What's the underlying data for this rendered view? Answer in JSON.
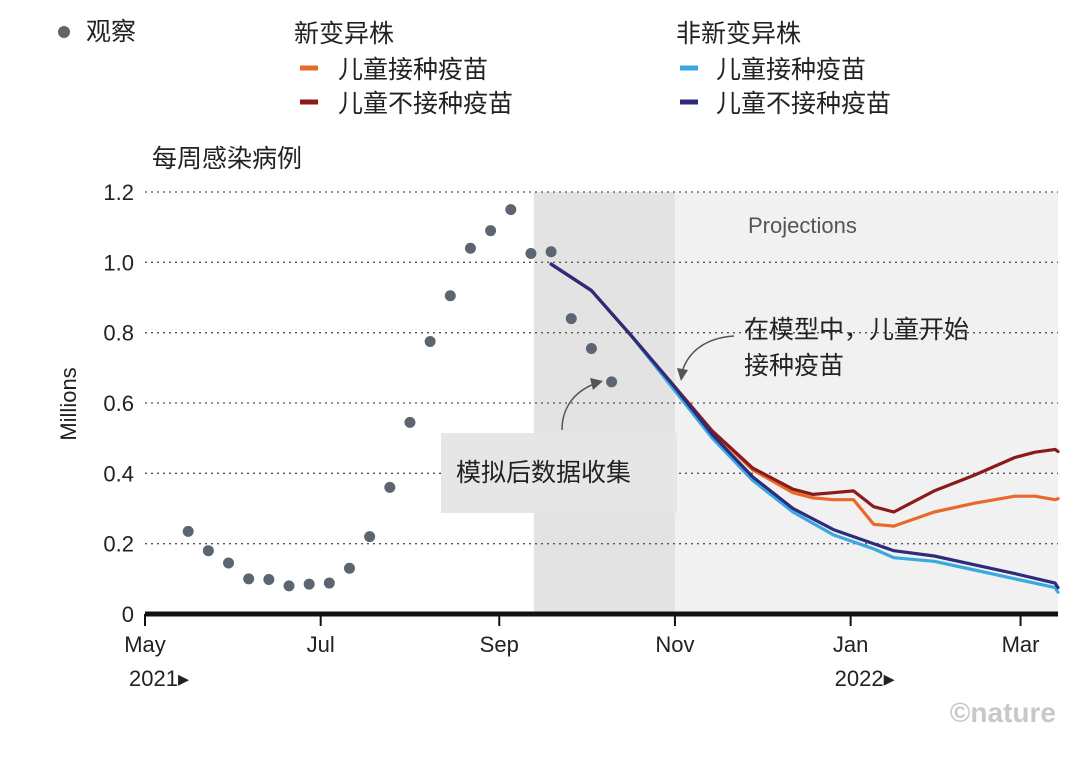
{
  "chart_data": {
    "type": "line",
    "ylabel_top": "每周感染病例",
    "ylabel": "Millions",
    "ylim": [
      0,
      1.2
    ],
    "yticks": [
      "0",
      "0.2",
      "0.4",
      "0.6",
      "0.8",
      "1.0",
      "1.2"
    ],
    "xticks": [
      {
        "date": "2021-05-01",
        "label": "May"
      },
      {
        "date": "2021-07-01",
        "label": "Jul"
      },
      {
        "date": "2021-09-01",
        "label": "Sep"
      },
      {
        "date": "2021-11-01",
        "label": "Nov"
      },
      {
        "date": "2022-01-01",
        "label": "Jan"
      },
      {
        "date": "2022-03-01",
        "label": "Mar"
      }
    ],
    "year_labels": [
      {
        "date": "2021-05-01",
        "label": "2021▸"
      },
      {
        "date": "2022-01-01",
        "label": "2022▸"
      }
    ],
    "xlim": [
      "2021-05-01",
      "2022-03-14"
    ],
    "grid": true,
    "legend": {
      "observed_label": "观察",
      "group1_title": "新变异株",
      "group2_title": "非新变异株",
      "vaccinated_label": "儿童接种疫苗",
      "unvaccinated_label": "儿童不接种疫苗"
    },
    "shaded_regions": [
      {
        "start": "2021-09-13",
        "end": "2021-11-01",
        "color": "#e3e3e3"
      },
      {
        "start": "2021-11-01",
        "end": "2022-03-14",
        "color": "#f1f1f1",
        "label": "Projections"
      }
    ],
    "annotations": [
      {
        "text": "模拟后数据收集"
      },
      {
        "text_line1": "在模型中，儿童开始",
        "text_line2": "接种疫苗"
      }
    ],
    "credit": "©nature",
    "observed": {
      "color": "#5c6570",
      "points": [
        {
          "x": "2021-05-16",
          "y": 0.235
        },
        {
          "x": "2021-05-23",
          "y": 0.18
        },
        {
          "x": "2021-05-30",
          "y": 0.145
        },
        {
          "x": "2021-06-06",
          "y": 0.1
        },
        {
          "x": "2021-06-13",
          "y": 0.098
        },
        {
          "x": "2021-06-20",
          "y": 0.08
        },
        {
          "x": "2021-06-27",
          "y": 0.085
        },
        {
          "x": "2021-07-04",
          "y": 0.088
        },
        {
          "x": "2021-07-11",
          "y": 0.13
        },
        {
          "x": "2021-07-18",
          "y": 0.22
        },
        {
          "x": "2021-07-25",
          "y": 0.36
        },
        {
          "x": "2021-08-01",
          "y": 0.545
        },
        {
          "x": "2021-08-08",
          "y": 0.775
        },
        {
          "x": "2021-08-15",
          "y": 0.905
        },
        {
          "x": "2021-08-22",
          "y": 1.04
        },
        {
          "x": "2021-08-29",
          "y": 1.09
        },
        {
          "x": "2021-09-05",
          "y": 1.15
        },
        {
          "x": "2021-09-12",
          "y": 1.025
        },
        {
          "x": "2021-09-19",
          "y": 1.03
        },
        {
          "x": "2021-09-26",
          "y": 0.84
        },
        {
          "x": "2021-10-03",
          "y": 0.755
        },
        {
          "x": "2021-10-10",
          "y": 0.66
        }
      ]
    },
    "series": [
      {
        "group": "新变异株",
        "name": "儿童接种疫苗",
        "color": "#e8692a",
        "points": [
          [
            "2021-09-19",
            0.995
          ],
          [
            "2021-10-03",
            0.92
          ],
          [
            "2021-10-17",
            0.79
          ],
          [
            "2021-10-31",
            0.655
          ],
          [
            "2021-11-14",
            0.52
          ],
          [
            "2021-11-28",
            0.41
          ],
          [
            "2021-12-12",
            0.345
          ],
          [
            "2021-12-19",
            0.33
          ],
          [
            "2021-12-26",
            0.325
          ],
          [
            "2022-01-02",
            0.325
          ],
          [
            "2022-01-09",
            0.255
          ],
          [
            "2022-01-16",
            0.25
          ],
          [
            "2022-01-30",
            0.29
          ],
          [
            "2022-02-13",
            0.315
          ],
          [
            "2022-02-27",
            0.335
          ],
          [
            "2022-03-06",
            0.335
          ],
          [
            "2022-03-13",
            0.325
          ],
          [
            "2022-03-20",
            0.328
          ]
        ]
      },
      {
        "group": "新变异株",
        "name": "儿童不接种疫苗",
        "color": "#8b1a1a",
        "points": [
          [
            "2021-09-19",
            0.995
          ],
          [
            "2021-10-03",
            0.92
          ],
          [
            "2021-10-17",
            0.79
          ],
          [
            "2021-10-31",
            0.655
          ],
          [
            "2021-11-14",
            0.52
          ],
          [
            "2021-11-28",
            0.415
          ],
          [
            "2021-12-12",
            0.355
          ],
          [
            "2021-12-19",
            0.34
          ],
          [
            "2021-12-26",
            0.345
          ],
          [
            "2022-01-02",
            0.35
          ],
          [
            "2022-01-09",
            0.305
          ],
          [
            "2022-01-16",
            0.29
          ],
          [
            "2022-01-30",
            0.35
          ],
          [
            "2022-02-13",
            0.395
          ],
          [
            "2022-02-27",
            0.445
          ],
          [
            "2022-03-06",
            0.46
          ],
          [
            "2022-03-13",
            0.468
          ],
          [
            "2022-03-20",
            0.462
          ]
        ]
      },
      {
        "group": "非新变异株",
        "name": "儿童接种疫苗",
        "color": "#3aa8e0",
        "points": [
          [
            "2021-09-19",
            0.995
          ],
          [
            "2021-10-03",
            0.92
          ],
          [
            "2021-10-17",
            0.79
          ],
          [
            "2021-10-31",
            0.645
          ],
          [
            "2021-11-14",
            0.5
          ],
          [
            "2021-11-28",
            0.38
          ],
          [
            "2021-12-12",
            0.29
          ],
          [
            "2021-12-26",
            0.225
          ],
          [
            "2022-01-09",
            0.185
          ],
          [
            "2022-01-16",
            0.16
          ],
          [
            "2022-01-30",
            0.15
          ],
          [
            "2022-02-13",
            0.125
          ],
          [
            "2022-02-27",
            0.1
          ],
          [
            "2022-03-13",
            0.075
          ],
          [
            "2022-03-20",
            0.062
          ]
        ]
      },
      {
        "group": "非新变异株",
        "name": "儿童不接种疫苗",
        "color": "#2c2c7a",
        "points": [
          [
            "2021-09-19",
            0.995
          ],
          [
            "2021-10-03",
            0.92
          ],
          [
            "2021-10-17",
            0.79
          ],
          [
            "2021-10-31",
            0.655
          ],
          [
            "2021-11-14",
            0.51
          ],
          [
            "2021-11-28",
            0.39
          ],
          [
            "2021-12-12",
            0.3
          ],
          [
            "2021-12-26",
            0.24
          ],
          [
            "2022-01-09",
            0.2
          ],
          [
            "2022-01-16",
            0.18
          ],
          [
            "2022-01-30",
            0.165
          ],
          [
            "2022-02-13",
            0.14
          ],
          [
            "2022-02-27",
            0.115
          ],
          [
            "2022-03-13",
            0.088
          ],
          [
            "2022-03-20",
            0.075
          ]
        ]
      }
    ]
  }
}
